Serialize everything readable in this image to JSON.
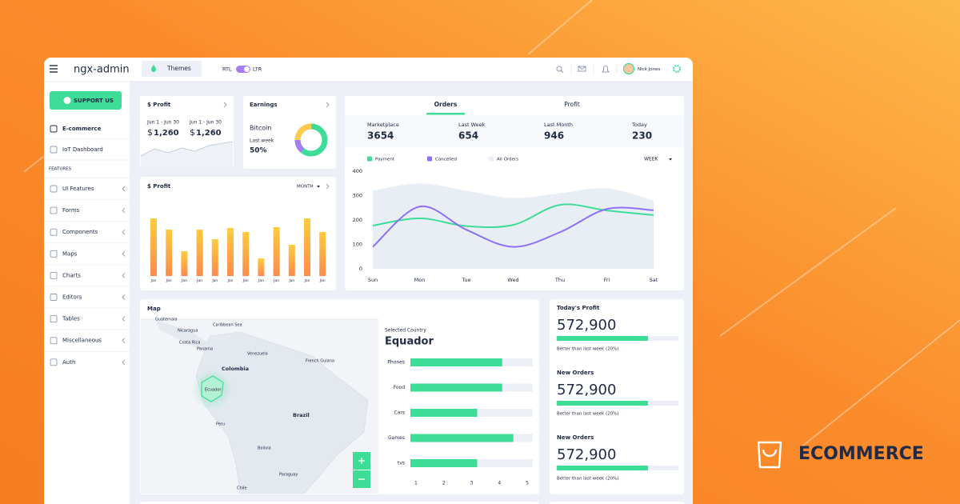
{
  "header": {
    "brand": "ngx-admin",
    "theme_button": "Themes",
    "direction": {
      "rtl": "RTL",
      "ltr": "LTR"
    },
    "user": "Nick Jones"
  },
  "sidebar": {
    "support": "SUPPORT US",
    "items": [
      "E-commerce",
      "IoT Dashboard"
    ],
    "section": "FEATURES",
    "features": [
      "UI Features",
      "Forms",
      "Components",
      "Maps",
      "Charts",
      "Editors",
      "Tables",
      "Miscellaneous",
      "Auth"
    ]
  },
  "profit_summary": {
    "title": "$ Profit",
    "periods": [
      {
        "label": "Jun 1 - Jun 30",
        "currency": "$",
        "amount": "1,260"
      },
      {
        "label": "Jun 1 - Jun 30",
        "currency": "$",
        "amount": "1,260"
      }
    ]
  },
  "earnings": {
    "title": "Earnings",
    "currency": "Bitcoin",
    "period": "Last week",
    "change": "50%"
  },
  "profit_chart": {
    "type": "bar",
    "title": "$ Profit",
    "period": "MONTH",
    "categories": [
      "Jan",
      "Jan",
      "Jan",
      "Jan",
      "Jan",
      "Jan",
      "Jan",
      "Jan",
      "Jan",
      "Jan",
      "Jan",
      "Jan"
    ],
    "values": [
      72,
      58,
      31,
      58,
      46,
      60,
      55,
      22,
      61,
      39,
      72,
      55
    ],
    "colors": [
      "#ffcc3d",
      "#ff8a4c"
    ]
  },
  "orders": {
    "tabs": [
      "Orders",
      "Profit"
    ],
    "stats": [
      {
        "label": "Marketplace",
        "value": 3654
      },
      {
        "label": "Last Week",
        "value": 654
      },
      {
        "label": "Last Month",
        "value": 946
      },
      {
        "label": "Today",
        "value": 230
      }
    ],
    "chart": {
      "type": "line",
      "period": "WEEK",
      "categories": [
        "Sun",
        "Mon",
        "Tue",
        "Wed",
        "Thu",
        "Fri",
        "Sat"
      ],
      "ylim": [
        0,
        400
      ],
      "yticks": [
        0,
        100,
        200,
        300,
        400
      ],
      "series": [
        {
          "name": "Payment",
          "color": "#3ddc97",
          "values": [
            177,
            207,
            175,
            180,
            262,
            239,
            220
          ]
        },
        {
          "name": "Cancelled",
          "color": "#8f6ff5",
          "values": [
            90,
            255,
            160,
            90,
            150,
            245,
            240
          ]
        },
        {
          "name": "All Orders",
          "color": "#e9eef5",
          "values": [
            320,
            350,
            320,
            290,
            310,
            330,
            280
          ]
        }
      ]
    }
  },
  "map": {
    "title": "Map",
    "labels": [
      "Guatemala",
      "Nicaragua",
      "Costa Rica",
      "Panama",
      "Caribbean Sea",
      "Venezuela",
      "Colombia",
      "French Guiana",
      "Ecuador",
      "Peru",
      "Brazil",
      "Bolivia",
      "Paraguay",
      "Chile"
    ],
    "selected_label": "Selected Country",
    "country": "Equador",
    "chart": {
      "type": "bar",
      "categories": [
        "Phones",
        "Food",
        "Cars",
        "Games",
        "tvs"
      ],
      "values": [
        4.1,
        4.1,
        3.2,
        4.5,
        3.2
      ],
      "xlim": [
        0.8,
        5.2
      ],
      "xticks": [
        1,
        2,
        3,
        4,
        5
      ],
      "color": "#3ddc97"
    }
  },
  "stats": [
    {
      "title": "Today's Profit",
      "value": "572,900",
      "progress": 75,
      "note": "Better than last week (20%)"
    },
    {
      "title": "New Orders",
      "value": "572,900",
      "progress": 75,
      "note": "Better than last week (20%)"
    },
    {
      "title": "New Orders",
      "value": "572,900",
      "progress": 75,
      "note": "Better than last week (20%)"
    }
  ],
  "badge": "ECOMMERCE"
}
